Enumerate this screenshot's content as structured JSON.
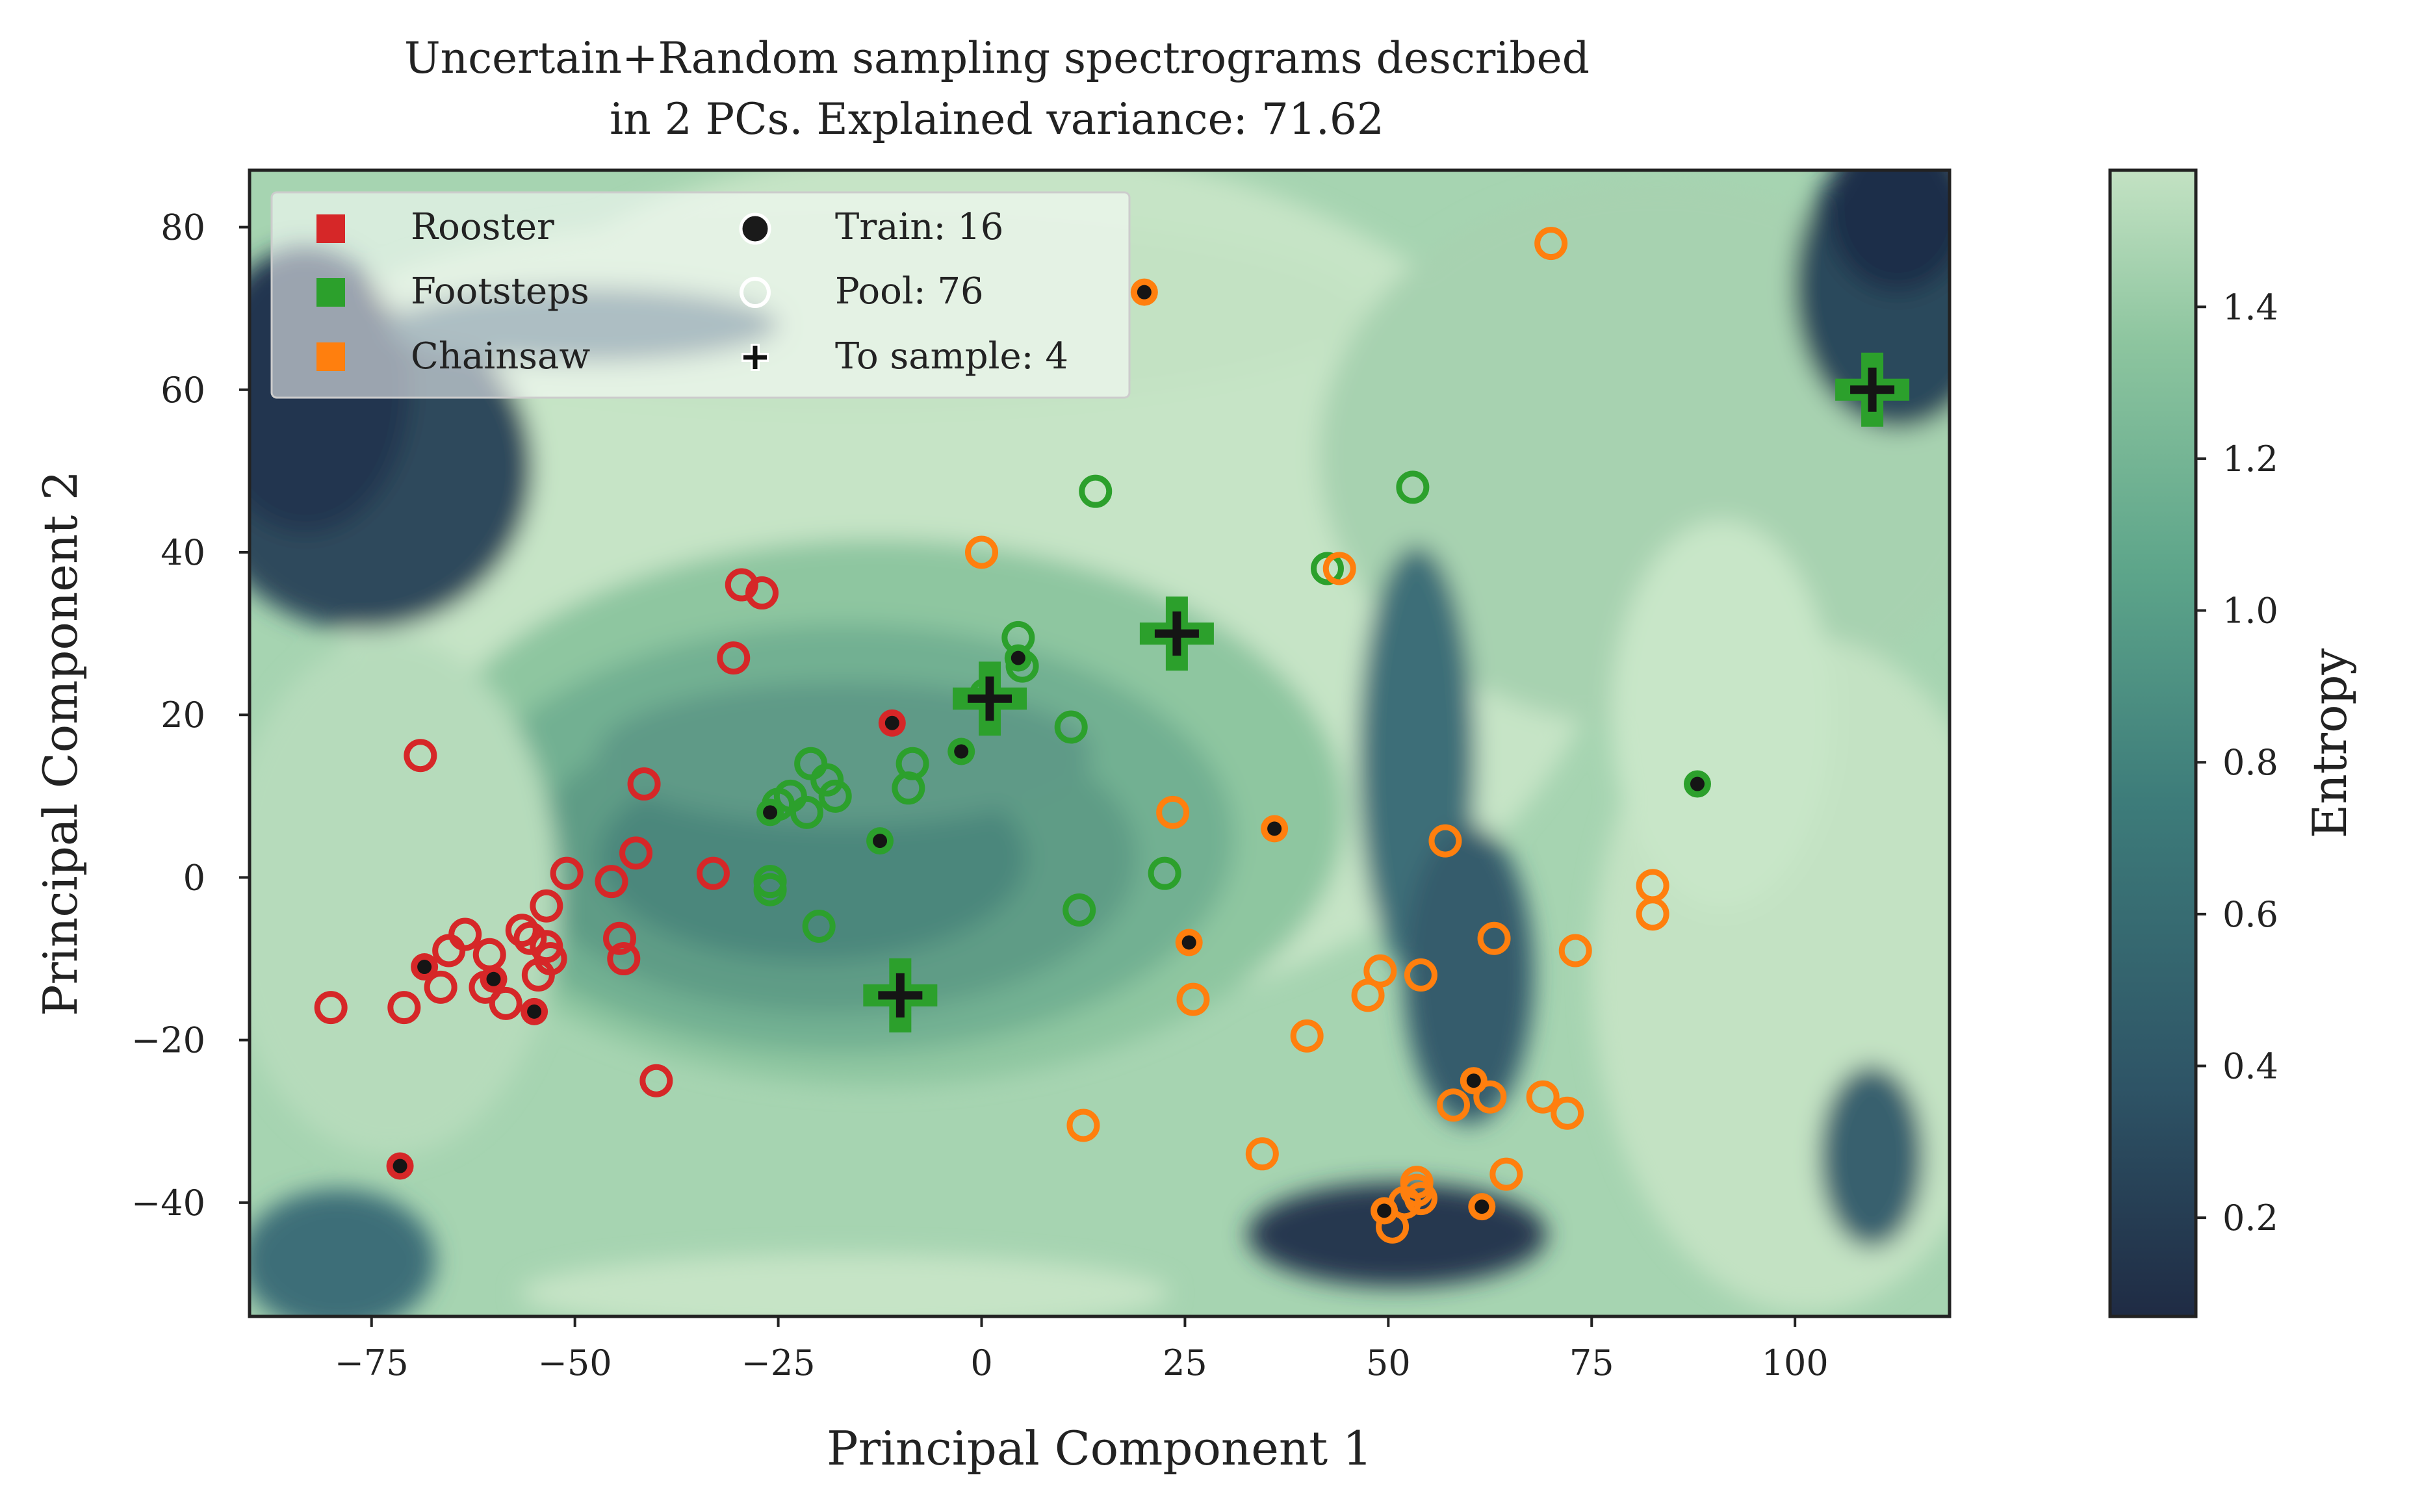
{
  "chart_data": {
    "type": "scatter",
    "title_line1": "Uncertain+Random sampling spectrograms described",
    "title_line2": "in 2 PCs. Explained variance: 71.62",
    "xlabel": "Principal Component 1",
    "ylabel": "Principal Component 2",
    "xlim": [
      -90,
      119
    ],
    "ylim": [
      -54,
      87
    ],
    "xticks": [
      -75,
      -50,
      -25,
      0,
      25,
      50,
      75,
      100
    ],
    "xtick_labels": [
      "−75",
      "−50",
      "−25",
      "0",
      "25",
      "50",
      "75",
      "100"
    ],
    "yticks": [
      -40,
      -20,
      0,
      20,
      40,
      60,
      80
    ],
    "ytick_labels": [
      "−40",
      "−20",
      "0",
      "20",
      "40",
      "60",
      "80"
    ],
    "grid": false,
    "legend_position": "top-left",
    "legend": {
      "classes": [
        {
          "label": "Rooster",
          "color": "#d62728"
        },
        {
          "label": "Footsteps",
          "color": "#2ca02c"
        },
        {
          "label": "Chainsaw",
          "color": "#ff7f0e"
        }
      ],
      "markers": [
        {
          "label": "Train: 16",
          "marker": "filled-dot"
        },
        {
          "label": "Pool: 76",
          "marker": "hollow-circle"
        },
        {
          "label": "To sample: 4",
          "marker": "plus"
        }
      ]
    },
    "colorbar": {
      "label": "Entropy",
      "range": [
        0.07,
        1.58
      ],
      "ticks": [
        0.2,
        0.4,
        0.6,
        0.8,
        1.0,
        1.2,
        1.4
      ],
      "tick_labels": [
        "0.2",
        "0.4",
        "0.6",
        "0.8",
        "1.0",
        "1.2",
        "1.4"
      ],
      "colormap": [
        "#1f2b44",
        "#2e5466",
        "#3d7c7a",
        "#5da58a",
        "#8dc59f",
        "#c3e2c3"
      ]
    },
    "background": "entropy heatmap",
    "series": [
      {
        "name": "Rooster",
        "color": "#d62728",
        "train": [
          [
            -68.5,
            -11
          ],
          [
            -60,
            -12.5
          ],
          [
            -55,
            -16.5
          ],
          [
            -71.5,
            -35.5
          ],
          [
            -11,
            19
          ]
        ],
        "pool": [
          [
            -69,
            15
          ],
          [
            -80,
            -16
          ],
          [
            -71,
            -16
          ],
          [
            -66.5,
            -13.5
          ],
          [
            -65.5,
            -9
          ],
          [
            -63.5,
            -7
          ],
          [
            -60.5,
            -9.5
          ],
          [
            -61,
            -13.5
          ],
          [
            -58.5,
            -15.5
          ],
          [
            -56.5,
            -6.5
          ],
          [
            -55.5,
            -7.5
          ],
          [
            -54.5,
            -12
          ],
          [
            -53.5,
            -8.5
          ],
          [
            -53,
            -10
          ],
          [
            -53.5,
            -3.5
          ],
          [
            -51,
            0.5
          ],
          [
            -45.5,
            -0.5
          ],
          [
            -44.5,
            -7.5
          ],
          [
            -44,
            -10
          ],
          [
            -42.5,
            3
          ],
          [
            -41.5,
            11.5
          ],
          [
            -40,
            -25
          ],
          [
            -33,
            0.5
          ],
          [
            -30.5,
            27
          ],
          [
            -29.5,
            36
          ],
          [
            -27,
            35
          ]
        ]
      },
      {
        "name": "Footsteps",
        "color": "#2ca02c",
        "train": [
          [
            -26,
            8
          ],
          [
            -12.5,
            4.5
          ],
          [
            -2.5,
            15.5
          ],
          [
            4.5,
            27
          ],
          [
            88,
            11.5
          ]
        ],
        "pool": [
          [
            -25,
            9
          ],
          [
            -26,
            -0.5
          ],
          [
            -26,
            -1.5
          ],
          [
            -23.5,
            10
          ],
          [
            -21.5,
            8
          ],
          [
            -21,
            14
          ],
          [
            -20,
            -6
          ],
          [
            -19,
            12
          ],
          [
            -18,
            10
          ],
          [
            -9,
            11
          ],
          [
            -8.5,
            14
          ],
          [
            0.5,
            22.5
          ],
          [
            4.5,
            29.5
          ],
          [
            5,
            26
          ],
          [
            11,
            18.5
          ],
          [
            12,
            -4
          ],
          [
            14,
            47.5
          ],
          [
            22.5,
            0.5
          ],
          [
            42.5,
            38
          ],
          [
            53,
            48
          ]
        ],
        "to_sample": [
          [
            -10,
            -14.5
          ],
          [
            1,
            22
          ],
          [
            24,
            30
          ],
          [
            109.5,
            60
          ]
        ]
      },
      {
        "name": "Chainsaw",
        "color": "#ff7f0e",
        "train": [
          [
            20,
            72
          ],
          [
            25.5,
            -8
          ],
          [
            36,
            6
          ],
          [
            49.5,
            -41
          ],
          [
            60.5,
            -25
          ],
          [
            61.5,
            -40.5
          ]
        ],
        "pool": [
          [
            0,
            40
          ],
          [
            44,
            38
          ],
          [
            12.5,
            -30.5
          ],
          [
            23.5,
            8
          ],
          [
            26,
            -15
          ],
          [
            34.5,
            -34
          ],
          [
            40,
            -19.5
          ],
          [
            47.5,
            -14.5
          ],
          [
            49,
            -11.5
          ],
          [
            54,
            -12
          ],
          [
            50.5,
            -43
          ],
          [
            52,
            -40
          ],
          [
            53.5,
            -38.5
          ],
          [
            54,
            -39.5
          ],
          [
            53.5,
            -37.5
          ],
          [
            57,
            4.5
          ],
          [
            58,
            -28
          ],
          [
            62.5,
            -27
          ],
          [
            63,
            -7.5
          ],
          [
            64.5,
            -36.5
          ],
          [
            69,
            -27
          ],
          [
            72,
            -29
          ],
          [
            73,
            -9
          ],
          [
            70,
            78
          ],
          [
            82.5,
            -1
          ],
          [
            82.5,
            -4.5
          ]
        ]
      }
    ]
  }
}
